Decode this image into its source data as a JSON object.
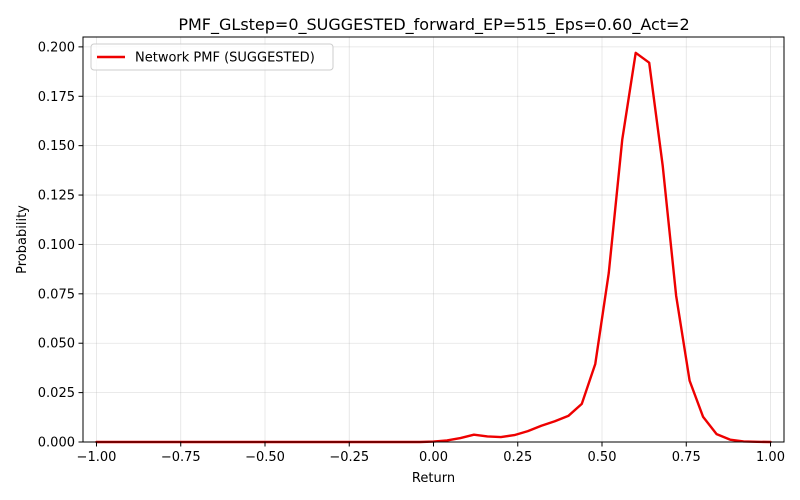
{
  "chart_data": {
    "type": "line",
    "title": "PMF_GLstep=0_SUGGESTED_forward_EP=515_Eps=0.60_Act=2",
    "xlabel": "Return",
    "ylabel": "Probability",
    "xlim": [
      -1.04,
      1.04
    ],
    "ylim": [
      0,
      0.205
    ],
    "x_ticks": [
      -1.0,
      -0.75,
      -0.5,
      -0.25,
      0.0,
      0.25,
      0.5,
      0.75,
      1.0
    ],
    "x_tick_labels": [
      "−1.00",
      "−0.75",
      "−0.50",
      "−0.25",
      "0.00",
      "0.25",
      "0.50",
      "0.75",
      "1.00"
    ],
    "y_ticks": [
      0.0,
      0.025,
      0.05,
      0.075,
      0.1,
      0.125,
      0.15,
      0.175,
      0.2
    ],
    "y_tick_labels": [
      "0.000",
      "0.025",
      "0.050",
      "0.075",
      "0.100",
      "0.125",
      "0.150",
      "0.175",
      "0.200"
    ],
    "grid": true,
    "legend_position": "top-left",
    "series": [
      {
        "name": "Network PMF (SUGGESTED)",
        "color": "#ee0000",
        "x": [
          -1.0,
          -0.96,
          -0.92,
          -0.88,
          -0.84,
          -0.8,
          -0.76,
          -0.72,
          -0.68,
          -0.64,
          -0.6,
          -0.56,
          -0.52,
          -0.48,
          -0.44,
          -0.4,
          -0.36,
          -0.32,
          -0.28,
          -0.24,
          -0.2,
          -0.16,
          -0.12,
          -0.08,
          -0.04,
          0.0,
          0.04,
          0.08,
          0.12,
          0.16,
          0.2,
          0.24,
          0.28,
          0.32,
          0.36,
          0.4,
          0.44,
          0.48,
          0.52,
          0.56,
          0.6,
          0.64,
          0.68,
          0.72,
          0.76,
          0.8,
          0.84,
          0.88,
          0.92,
          0.96,
          1.0
        ],
        "y": [
          0,
          0,
          0,
          0,
          0,
          0,
          0,
          0,
          0,
          0,
          0,
          0,
          0,
          0,
          0,
          0,
          0,
          0,
          0,
          0,
          0,
          0,
          0,
          0,
          0,
          0.0002,
          0.0008,
          0.002,
          0.0037,
          0.0028,
          0.0025,
          0.0035,
          0.0055,
          0.0082,
          0.0105,
          0.0132,
          0.0193,
          0.0395,
          0.0855,
          0.153,
          0.197,
          0.192,
          0.14,
          0.074,
          0.031,
          0.0127,
          0.004,
          0.0012,
          0.0003,
          0.0001,
          0
        ]
      }
    ]
  }
}
